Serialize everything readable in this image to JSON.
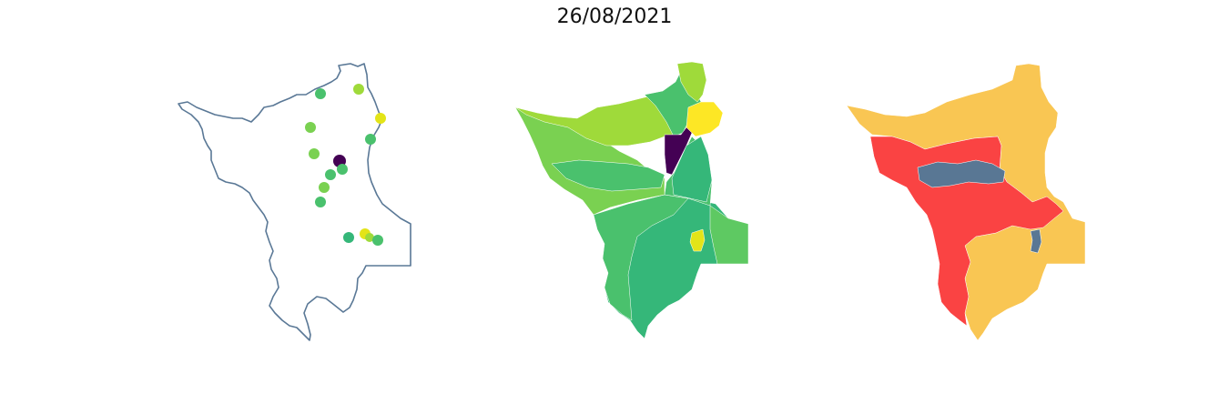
{
  "figure": {
    "title": "26/08/2021"
  },
  "colors": {
    "outline": "#5a7896",
    "viridis_dark": "#440154",
    "viridis_yellow": "#fde725",
    "viridis_lime": "#9fda3a",
    "viridis_green": "#7ad151",
    "viridis_mid": "#4ac16d",
    "viridis_teal": "#35b779",
    "risk_red": "#fa4343",
    "risk_orange": "#f9c653",
    "risk_slate": "#597794"
  },
  "panels": [
    {
      "name": "station-points",
      "kind": "point-map"
    },
    {
      "name": "choropleth-viridis",
      "kind": "choropleth"
    },
    {
      "name": "choropleth-categorical",
      "kind": "choropleth"
    }
  ]
}
